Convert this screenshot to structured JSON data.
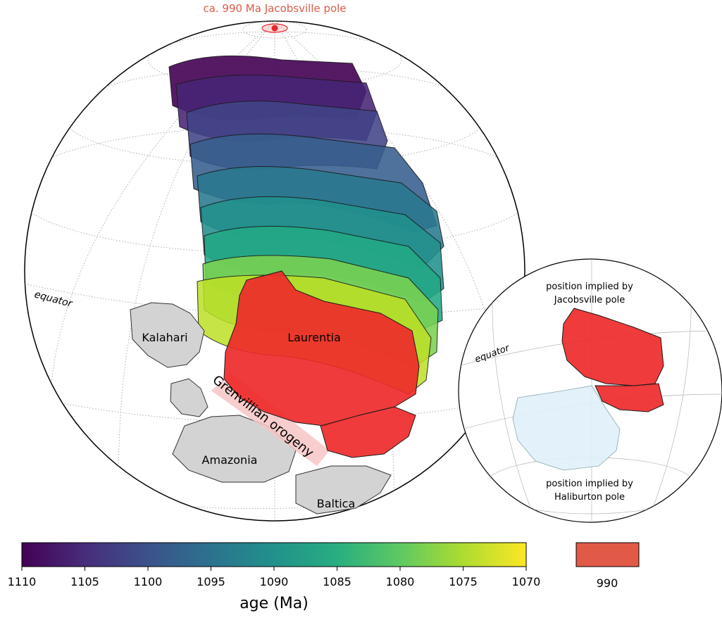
{
  "main_globe": {
    "pole_label": "ca. 990 Ma Jacobsville pole",
    "equator_label": "equator",
    "labels": {
      "laurentia": "Laurentia",
      "kalahari": "Kalahari",
      "amazonia": "Amazonia",
      "baltica": "Baltica",
      "grenvillian": "Grenvillian orogeny"
    }
  },
  "inset_globe": {
    "equator_label": "equator",
    "top_label": [
      "position implied by",
      "Jacobsville pole"
    ],
    "bottom_label": [
      "position implied by",
      "Haliburton pole"
    ]
  },
  "colorbar": {
    "label": "age (Ma)",
    "ticks": [
      "1110",
      "1105",
      "1100",
      "1095",
      "1090",
      "1085",
      "1080",
      "1075",
      "1070"
    ],
    "swatch_label": "990",
    "swatch_color": "#e05a47"
  },
  "colors": {
    "pole": "#e8262e",
    "laurentia_990": "#ee2a2a",
    "craton_grey": "#d3d3d3",
    "haliburton_fill": "#dff0fa",
    "orogeny_pink": "#f6c4c4",
    "pole_label_color": "#e05a47"
  }
}
